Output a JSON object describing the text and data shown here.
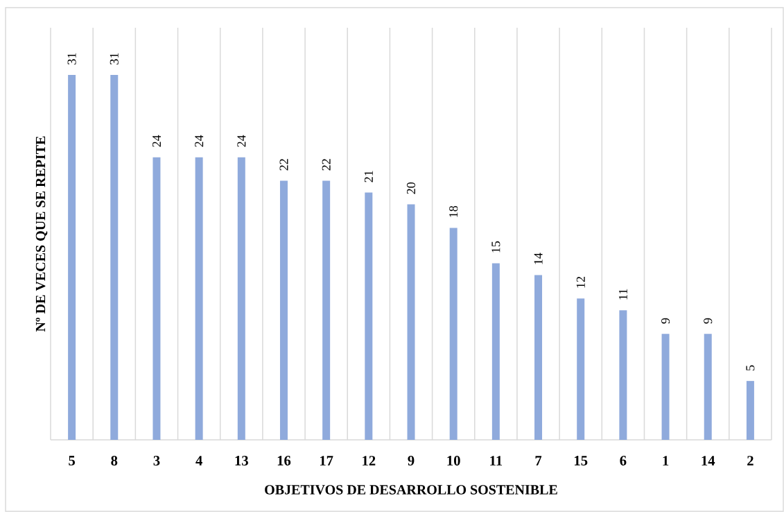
{
  "chart_data": {
    "type": "bar",
    "xlabel": "OBJETIVOS DE DESARROLLO SOSTENIBLE",
    "ylabel": "Nº DE VECES QUE SE REPITE",
    "categories": [
      "5",
      "8",
      "3",
      "4",
      "13",
      "16",
      "17",
      "12",
      "9",
      "10",
      "11",
      "7",
      "15",
      "6",
      "1",
      "14",
      "2"
    ],
    "values": [
      31,
      31,
      24,
      24,
      24,
      22,
      22,
      21,
      20,
      18,
      15,
      14,
      12,
      11,
      9,
      9,
      5
    ],
    "color": "#8faadc",
    "ylim": [
      0,
      35
    ],
    "data_labels": true,
    "grid": "x",
    "tick_labels": "x"
  }
}
